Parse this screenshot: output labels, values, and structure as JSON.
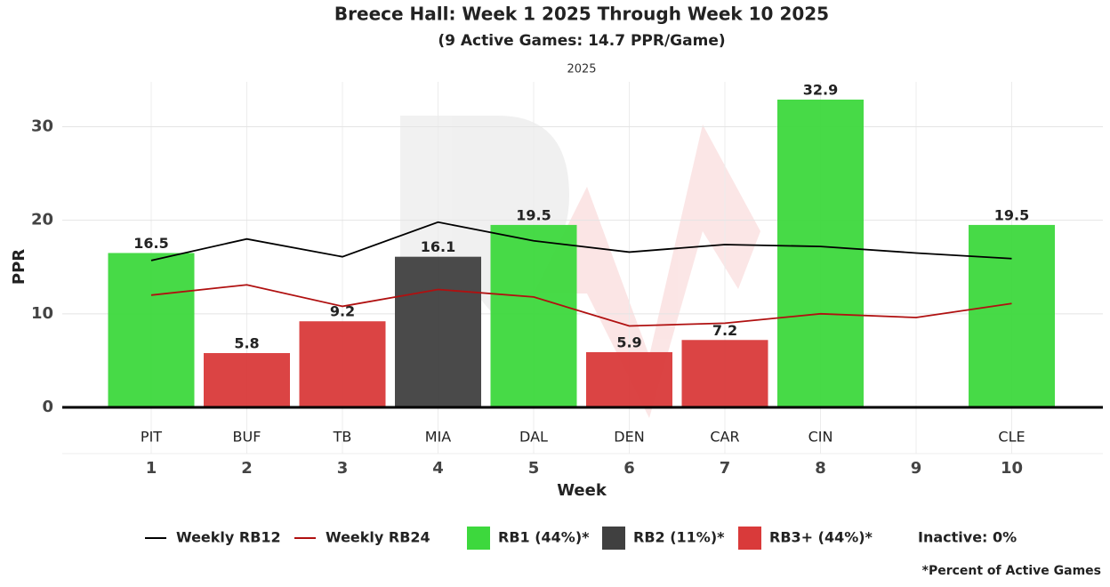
{
  "chart_data": {
    "type": "bar",
    "title": "Breece Hall: Week 1 2025 Through Week 10 2025",
    "subtitle": "(9 Active Games: 14.7 PPR/Game)",
    "facet_label": "2025",
    "x_label": "Week",
    "y_label": "PPR",
    "categories": [
      "1",
      "2",
      "3",
      "4",
      "5",
      "6",
      "7",
      "8",
      "9",
      "10"
    ],
    "opponents": [
      "PIT",
      "BUF",
      "TB",
      "MIA",
      "DAL",
      "DEN",
      "CAR",
      "CIN",
      null,
      "CLE"
    ],
    "values": [
      16.5,
      5.8,
      9.2,
      16.1,
      19.5,
      5.9,
      7.2,
      32.9,
      null,
      19.5
    ],
    "bar_colors": [
      "#3dd83d",
      "#d93a3a",
      "#d93a3a",
      "#404040",
      "#3dd83d",
      "#d93a3a",
      "#d93a3a",
      "#3dd83d",
      null,
      "#3dd83d"
    ],
    "series": [
      {
        "name": "Weekly RB12",
        "color": "#000000",
        "values": [
          15.7,
          18.0,
          16.1,
          19.8,
          17.8,
          16.6,
          17.4,
          17.2,
          16.5,
          15.9
        ]
      },
      {
        "name": "Weekly RB24",
        "color": "#b01010",
        "values": [
          12.0,
          13.1,
          10.8,
          12.6,
          11.8,
          8.7,
          9.0,
          10.0,
          9.6,
          11.1
        ]
      }
    ],
    "tiers": [
      {
        "name": "RB1 (44%)*",
        "color": "#3dd83d"
      },
      {
        "name": "RB2 (11%)*",
        "color": "#404040"
      },
      {
        "name": "RB3+ (44%)*",
        "color": "#d93a3a"
      }
    ],
    "inactive_label": "Inactive: 0%",
    "footnote": "*Percent of Active Games",
    "ylim": [
      0,
      34.8
    ],
    "yticks": [
      0,
      10,
      20,
      30
    ],
    "grid": true
  }
}
